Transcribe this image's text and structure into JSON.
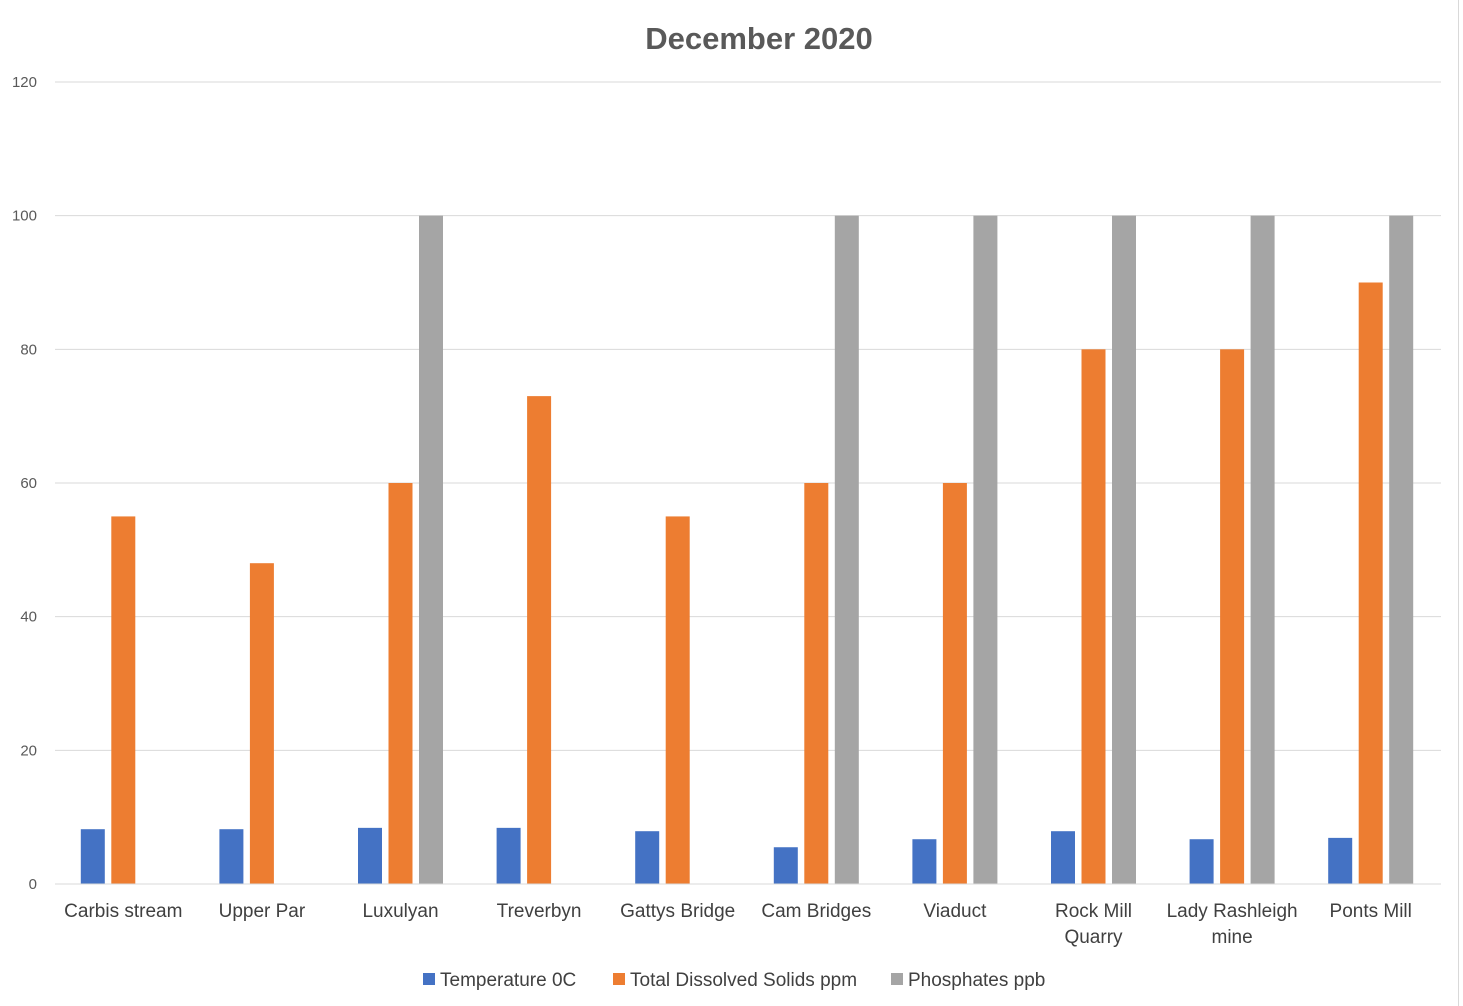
{
  "chart_data": {
    "type": "bar",
    "title": "December 2020",
    "xlabel": "",
    "ylabel": "",
    "ylim": [
      0,
      120
    ],
    "yticks": [
      0,
      20,
      40,
      60,
      80,
      100,
      120
    ],
    "grid": true,
    "legend_position": "bottom",
    "categories": [
      [
        "Carbis stream"
      ],
      [
        "Upper Par"
      ],
      [
        "Luxulyan"
      ],
      [
        "Treverbyn"
      ],
      [
        "Gattys Bridge"
      ],
      [
        "Cam Bridges"
      ],
      [
        "Viaduct"
      ],
      [
        "Rock Mill",
        "Quarry"
      ],
      [
        "Lady Rashleigh",
        "mine"
      ],
      [
        "Ponts Mill"
      ]
    ],
    "series": [
      {
        "name": "Temperature 0C",
        "color": "#4472c4",
        "values": [
          8.2,
          8.2,
          8.4,
          8.4,
          7.9,
          5.5,
          6.7,
          7.9,
          6.7,
          6.9
        ]
      },
      {
        "name": "Total Dissolved Solids ppm",
        "color": "#ed7d31",
        "values": [
          55,
          48,
          60,
          73,
          55,
          60,
          60,
          80,
          80,
          90
        ]
      },
      {
        "name": "Phosphates ppb",
        "color": "#a5a5a5",
        "values": [
          0,
          0,
          100,
          0,
          0,
          100,
          100,
          100,
          100,
          100
        ]
      }
    ]
  }
}
